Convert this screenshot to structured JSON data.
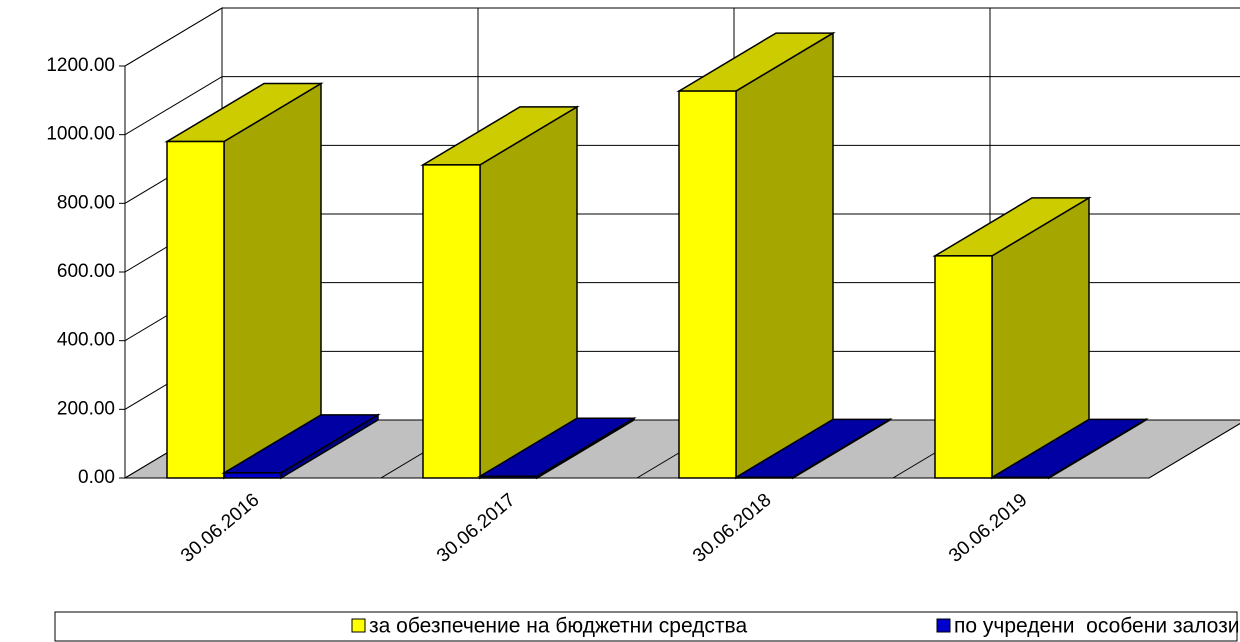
{
  "chart_data": {
    "type": "bar3d",
    "categories": [
      "30.06.2016",
      "30.06.2017",
      "30.06.2018",
      "30.06.2019"
    ],
    "series": [
      {
        "name": "за обезпечение на бюджетни средства",
        "color": "#ffff00",
        "values": [
          980,
          912,
          1127,
          647
        ]
      },
      {
        "name": "по учредени  особени залози",
        "color": "#0000cc",
        "values": [
          15,
          5,
          2,
          2
        ]
      }
    ],
    "ylim": [
      0,
      1200
    ],
    "yticks": [
      {
        "value": 0,
        "label": "0.00"
      },
      {
        "value": 200,
        "label": "200.00"
      },
      {
        "value": 400,
        "label": "400.00"
      },
      {
        "value": 600,
        "label": "600.00"
      },
      {
        "value": 800,
        "label": "800.00"
      },
      {
        "value": 1000,
        "label": "1000.00"
      },
      {
        "value": 1200,
        "label": "1200.00"
      }
    ],
    "grid": true,
    "legend": "bottom"
  }
}
